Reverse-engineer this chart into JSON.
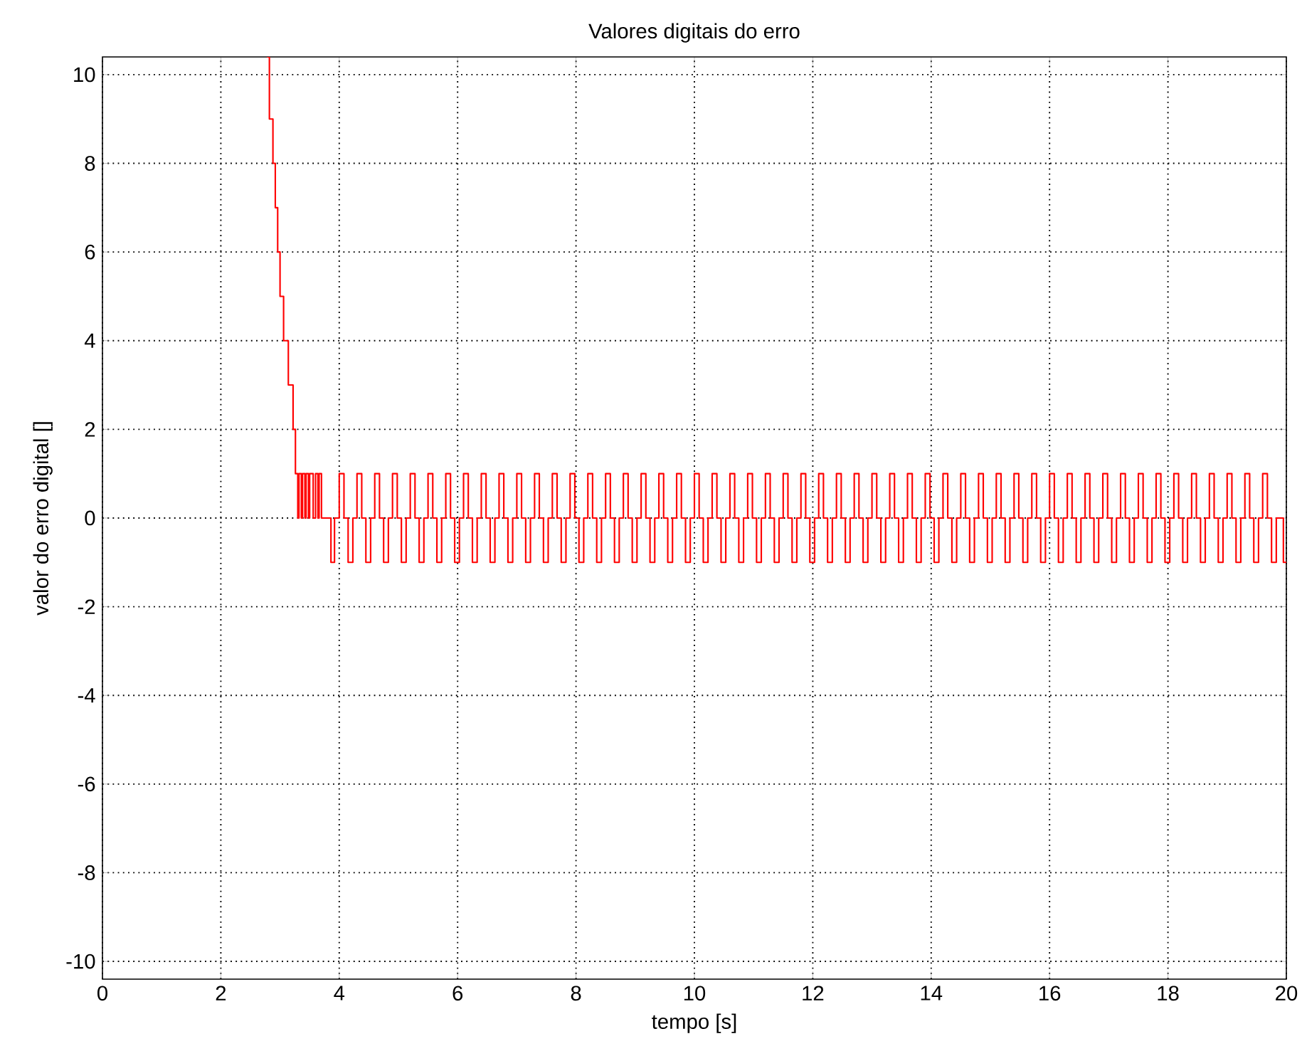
{
  "chart_data": {
    "type": "step",
    "title": "Valores digitais do erro",
    "xlabel": "tempo [s]",
    "ylabel": "valor do erro digital []",
    "xlim": [
      0,
      20
    ],
    "ylim": [
      -10.4,
      10.4
    ],
    "xticks": [
      0,
      2,
      4,
      6,
      8,
      10,
      12,
      14,
      16,
      18,
      20
    ],
    "yticks": [
      -10,
      -8,
      -6,
      -4,
      -2,
      0,
      2,
      4,
      6,
      8,
      10
    ],
    "grid": true,
    "series": [
      {
        "color": "#ff0000",
        "x": [
          2.78,
          2.82,
          2.88,
          2.92,
          2.96,
          3.0,
          3.06,
          3.14,
          3.22,
          3.26,
          3.3,
          3.32,
          3.36,
          3.38,
          3.42,
          3.44,
          3.48,
          3.5,
          3.56,
          3.6,
          3.64,
          3.66,
          3.7,
          3.86,
          3.92,
          4.0,
          4.08,
          4.15,
          4.23,
          4.3,
          4.38,
          4.45,
          4.53,
          4.6,
          4.68,
          4.75,
          4.83,
          4.9,
          4.98,
          5.05,
          5.13,
          5.2,
          5.28,
          5.35,
          5.43,
          5.5,
          5.58,
          5.65,
          5.73,
          5.8,
          5.88,
          5.95,
          6.03,
          6.1,
          6.18,
          6.25,
          6.33,
          6.4,
          6.48,
          6.55,
          6.63,
          6.7,
          6.78,
          6.85,
          6.93,
          7.0,
          7.08,
          7.15,
          7.23,
          7.3,
          7.38,
          7.45,
          7.53,
          7.6,
          7.68,
          7.75,
          7.83,
          7.9,
          7.98,
          8.05,
          8.13,
          8.2,
          8.28,
          8.35,
          8.43,
          8.5,
          8.58,
          8.65,
          8.73,
          8.8,
          8.88,
          8.95,
          9.03,
          9.1,
          9.18,
          9.25,
          9.33,
          9.4,
          9.48,
          9.55,
          9.63,
          9.7,
          9.78,
          9.85,
          9.93,
          10.0,
          10.08,
          10.15,
          10.23,
          10.3,
          10.38,
          10.45,
          10.53,
          10.6,
          10.68,
          10.75,
          10.83,
          10.9,
          10.98,
          11.05,
          11.13,
          11.2,
          11.28,
          11.35,
          11.43,
          11.5,
          11.58,
          11.65,
          11.73,
          11.8,
          11.88,
          11.95,
          12.03,
          12.1,
          12.18,
          12.25,
          12.33,
          12.4,
          12.48,
          12.55,
          12.63,
          12.7,
          12.78,
          12.85,
          12.93,
          13.0,
          13.08,
          13.15,
          13.23,
          13.3,
          13.38,
          13.45,
          13.53,
          13.6,
          13.68,
          13.75,
          13.83,
          13.9,
          13.98,
          14.05,
          14.13,
          14.2,
          14.28,
          14.35,
          14.43,
          14.5,
          14.58,
          14.65,
          14.73,
          14.8,
          14.88,
          14.95,
          15.03,
          15.1,
          15.18,
          15.25,
          15.33,
          15.4,
          15.48,
          15.55,
          15.63,
          15.7,
          15.78,
          15.85,
          15.93,
          16.0,
          16.08,
          16.15,
          16.23,
          16.3,
          16.38,
          16.45,
          16.53,
          16.6,
          16.68,
          16.75,
          16.83,
          16.9,
          16.98,
          17.05,
          17.13,
          17.2,
          17.28,
          17.35,
          17.43,
          17.5,
          17.58,
          17.65,
          17.73,
          17.8,
          17.88,
          17.95,
          18.03,
          18.1,
          18.18,
          18.25,
          18.33,
          18.4,
          18.48,
          18.55,
          18.63,
          18.7,
          18.78,
          18.85,
          18.93,
          19.0,
          19.08,
          19.15,
          19.23,
          19.3,
          19.38,
          19.45,
          19.53,
          19.6,
          19.68,
          19.75,
          19.83,
          19.95,
          20.0
        ],
        "values": [
          10.4,
          9,
          8,
          7,
          6,
          5,
          4,
          3,
          2,
          1,
          0,
          1,
          0,
          1,
          0,
          1,
          0,
          1,
          0,
          1,
          0,
          1,
          0,
          -1,
          0,
          1,
          0,
          -1,
          0,
          1,
          0,
          -1,
          0,
          1,
          0,
          -1,
          0,
          1,
          0,
          -1,
          0,
          1,
          0,
          -1,
          0,
          1,
          0,
          -1,
          0,
          1,
          0,
          -1,
          0,
          1,
          0,
          -1,
          0,
          1,
          0,
          -1,
          0,
          1,
          0,
          -1,
          0,
          1,
          0,
          -1,
          0,
          1,
          0,
          -1,
          0,
          1,
          0,
          -1,
          0,
          1,
          0,
          -1,
          0,
          1,
          0,
          -1,
          0,
          1,
          0,
          -1,
          0,
          1,
          0,
          -1,
          0,
          1,
          0,
          -1,
          0,
          1,
          0,
          -1,
          0,
          1,
          0,
          -1,
          0,
          1,
          0,
          -1,
          0,
          1,
          0,
          -1,
          0,
          1,
          0,
          -1,
          0,
          1,
          0,
          -1,
          0,
          1,
          0,
          -1,
          0,
          1,
          0,
          -1,
          0,
          1,
          0,
          -1,
          0,
          1,
          0,
          -1,
          0,
          1,
          0,
          -1,
          0,
          1,
          0,
          -1,
          0,
          1,
          0,
          -1,
          0,
          1,
          0,
          -1,
          0,
          1,
          0,
          -1,
          0,
          1,
          0,
          -1,
          0,
          1,
          0,
          -1,
          0,
          1,
          0,
          -1,
          0,
          1,
          0,
          -1,
          0,
          1,
          0,
          -1,
          0,
          1,
          0,
          -1,
          0,
          1,
          0,
          -1,
          0,
          1,
          0,
          -1,
          0,
          1,
          0,
          -1,
          0,
          1,
          0,
          -1,
          0,
          1,
          0,
          -1,
          0,
          1,
          0,
          -1,
          0,
          1,
          0,
          -1,
          0,
          1,
          0,
          -1,
          0,
          1,
          0,
          -1,
          0,
          1,
          0,
          -1,
          0,
          1,
          0,
          -1,
          0,
          1,
          0,
          -1,
          0,
          1,
          0,
          -1,
          0,
          1,
          0,
          -1,
          0,
          -1,
          -1
        ]
      }
    ]
  }
}
